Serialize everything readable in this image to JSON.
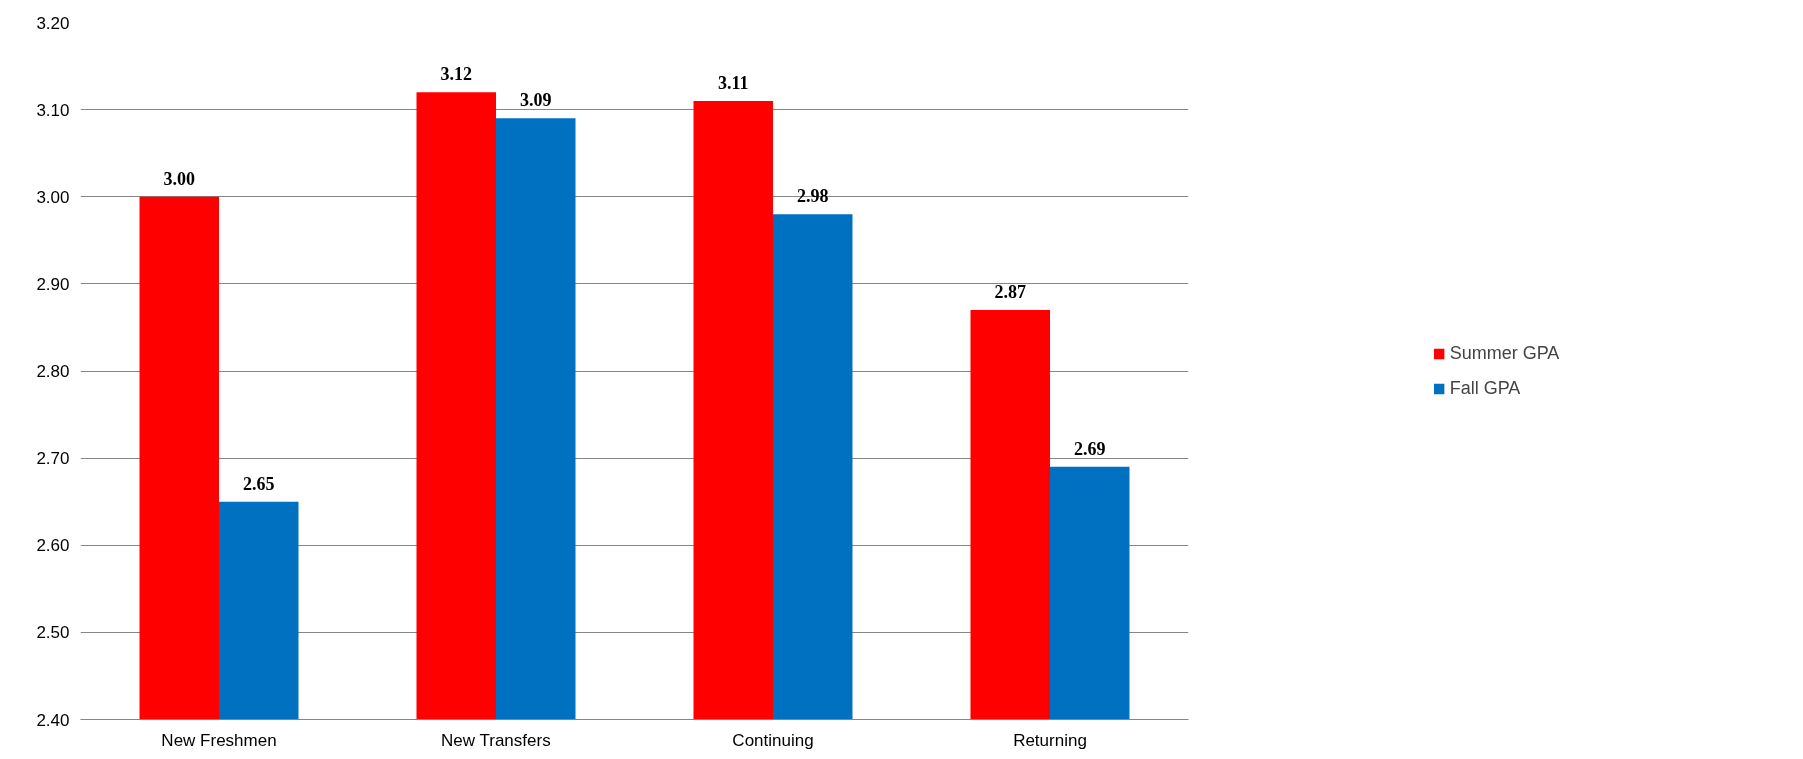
{
  "chart_data": {
    "type": "bar",
    "categories": [
      "New Freshmen",
      "New Transfers",
      "Continuing",
      "Returning"
    ],
    "series": [
      {
        "name": "Summer GPA",
        "color": "#ff0000",
        "values": [
          3.0,
          3.12,
          3.11,
          2.87
        ]
      },
      {
        "name": "Fall GPA",
        "color": "#0070c0",
        "values": [
          2.65,
          3.09,
          2.98,
          2.69
        ]
      }
    ],
    "value_labels": [
      [
        "3.00",
        "3.12",
        "3.11",
        "2.87"
      ],
      [
        "2.65",
        "3.09",
        "2.98",
        "2.69"
      ]
    ],
    "ylim": [
      2.4,
      3.2
    ],
    "yticks": [
      {
        "value": 2.4,
        "label": "2.40"
      },
      {
        "value": 2.5,
        "label": "2.50"
      },
      {
        "value": 2.6,
        "label": "2.60"
      },
      {
        "value": 2.7,
        "label": "2.70"
      },
      {
        "value": 2.8,
        "label": "2.80"
      },
      {
        "value": 2.9,
        "label": "2.90"
      },
      {
        "value": 3.0,
        "label": "3.00"
      },
      {
        "value": 3.1,
        "label": "3.10"
      },
      {
        "value": 3.2,
        "label": "3.20"
      }
    ],
    "grid": "y",
    "legend": "right"
  }
}
